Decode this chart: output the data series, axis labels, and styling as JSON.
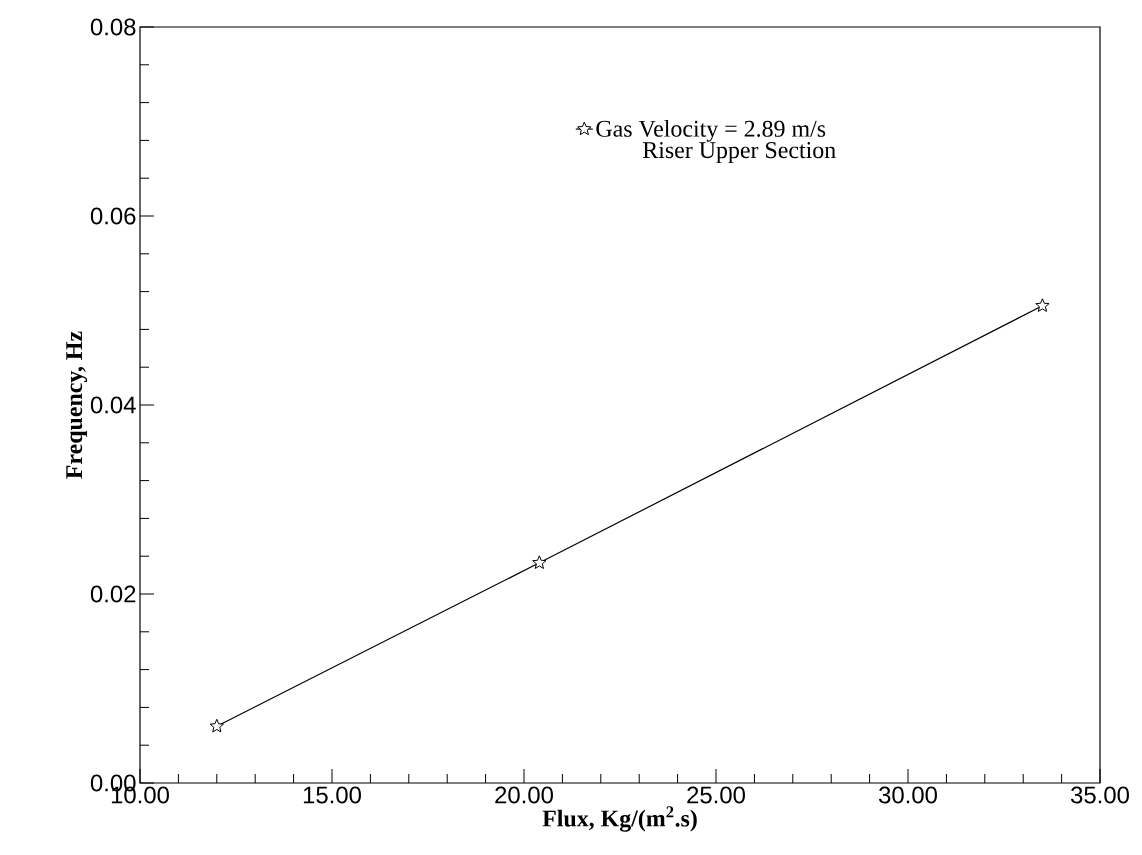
{
  "chart_data": {
    "type": "line",
    "xlabel": "Flux, Kg/(m$^{2}$.s)",
    "ylabel": "Frequency, Hz",
    "series": [
      {
        "name": "Gas Velocity = 2.89 m/s",
        "color": "#000000",
        "x": [
          12.0,
          20.4,
          33.5
        ],
        "values": [
          0.006,
          0.0233,
          0.0505
        ]
      }
    ],
    "annotations": [
      "Riser Upper Section"
    ],
    "xlim": [
      10,
      35
    ],
    "ylim": [
      0,
      0.08
    ],
    "xticks": [
      {
        "value": 10,
        "label": "10.00"
      },
      {
        "value": 15,
        "label": "15.00"
      },
      {
        "value": 20,
        "label": "20.00"
      },
      {
        "value": 25,
        "label": "25.00"
      },
      {
        "value": 30,
        "label": "30.00"
      },
      {
        "value": 35,
        "label": "35.00"
      }
    ],
    "yticks": [
      {
        "value": 0,
        "label": "0.00"
      },
      {
        "value": 0.02,
        "label": "0.02"
      },
      {
        "value": 0.04,
        "label": "0.04"
      },
      {
        "value": 0.06,
        "label": "0.06"
      },
      {
        "value": 0.08,
        "label": "0.08"
      }
    ],
    "marker": "star",
    "line_style": "solid",
    "grid": false,
    "legend": "top right"
  }
}
